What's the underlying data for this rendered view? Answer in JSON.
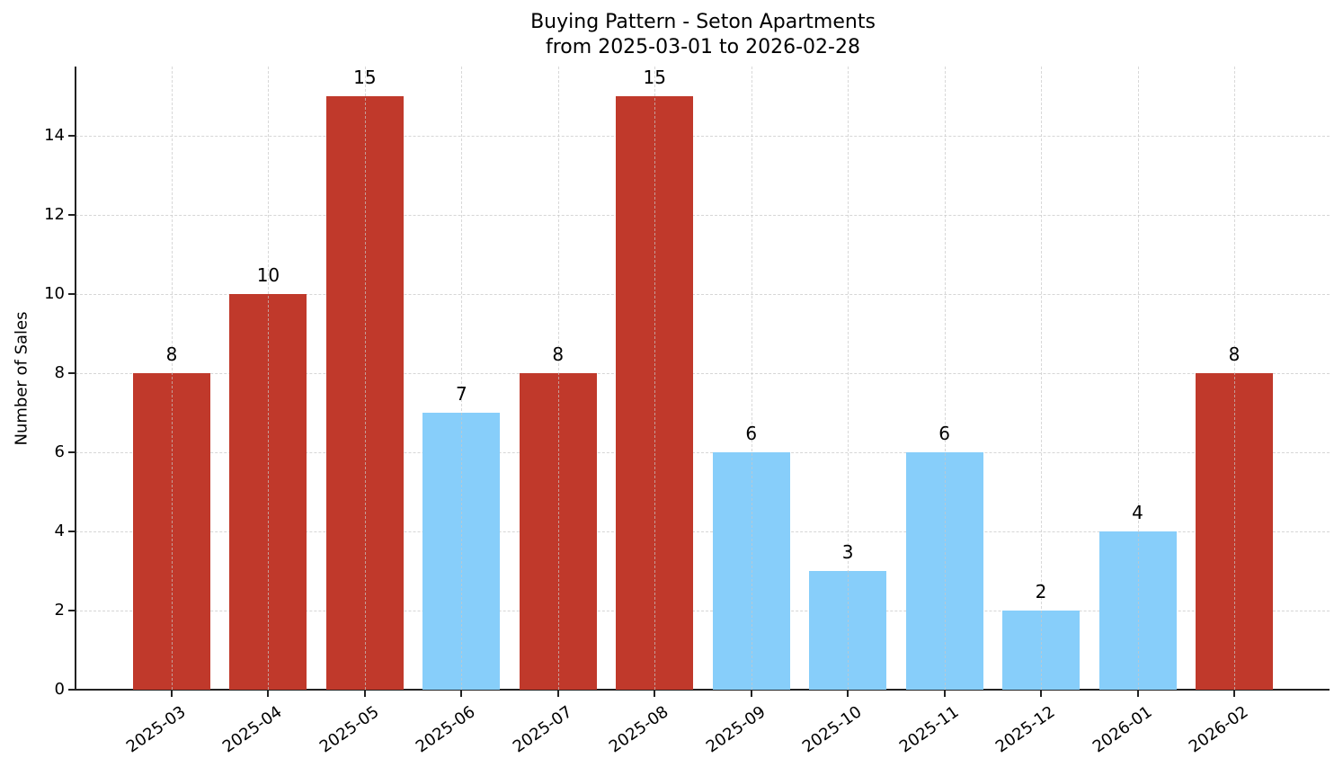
{
  "chart": {
    "title_line1": "Buying Pattern - Seton Apartments",
    "title_line2": "from 2025-03-01 to 2026-02-28",
    "ylabel": "Number of Sales",
    "yticks": [
      "0",
      "2",
      "4",
      "6",
      "8",
      "10",
      "12",
      "14"
    ],
    "colors": {
      "high": "#c0392b",
      "low": "#87cefa",
      "axis": "#222222",
      "grid": "#d6d6d6"
    }
  },
  "chart_data": {
    "type": "bar",
    "title": "Buying Pattern - Seton Apartments\nfrom 2025-03-01 to 2026-02-28",
    "xlabel": "",
    "ylabel": "Number of Sales",
    "categories": [
      "2025-03",
      "2025-04",
      "2025-05",
      "2025-06",
      "2025-07",
      "2025-08",
      "2025-09",
      "2025-10",
      "2025-11",
      "2025-12",
      "2026-01",
      "2026-02"
    ],
    "values": [
      8,
      10,
      15,
      7,
      8,
      15,
      6,
      3,
      6,
      2,
      4,
      8
    ],
    "bar_colors": [
      "#c0392b",
      "#c0392b",
      "#c0392b",
      "#87cefa",
      "#c0392b",
      "#c0392b",
      "#87cefa",
      "#87cefa",
      "#87cefa",
      "#87cefa",
      "#87cefa",
      "#c0392b"
    ],
    "data_labels": [
      "8",
      "10",
      "15",
      "7",
      "8",
      "15",
      "6",
      "3",
      "6",
      "2",
      "4",
      "8"
    ],
    "ylim": [
      0,
      15.75
    ],
    "yticks": [
      0,
      2,
      4,
      6,
      8,
      10,
      12,
      14
    ],
    "grid": true,
    "grid_style": "dashed",
    "legend": null,
    "x_tick_rotation": 35
  }
}
